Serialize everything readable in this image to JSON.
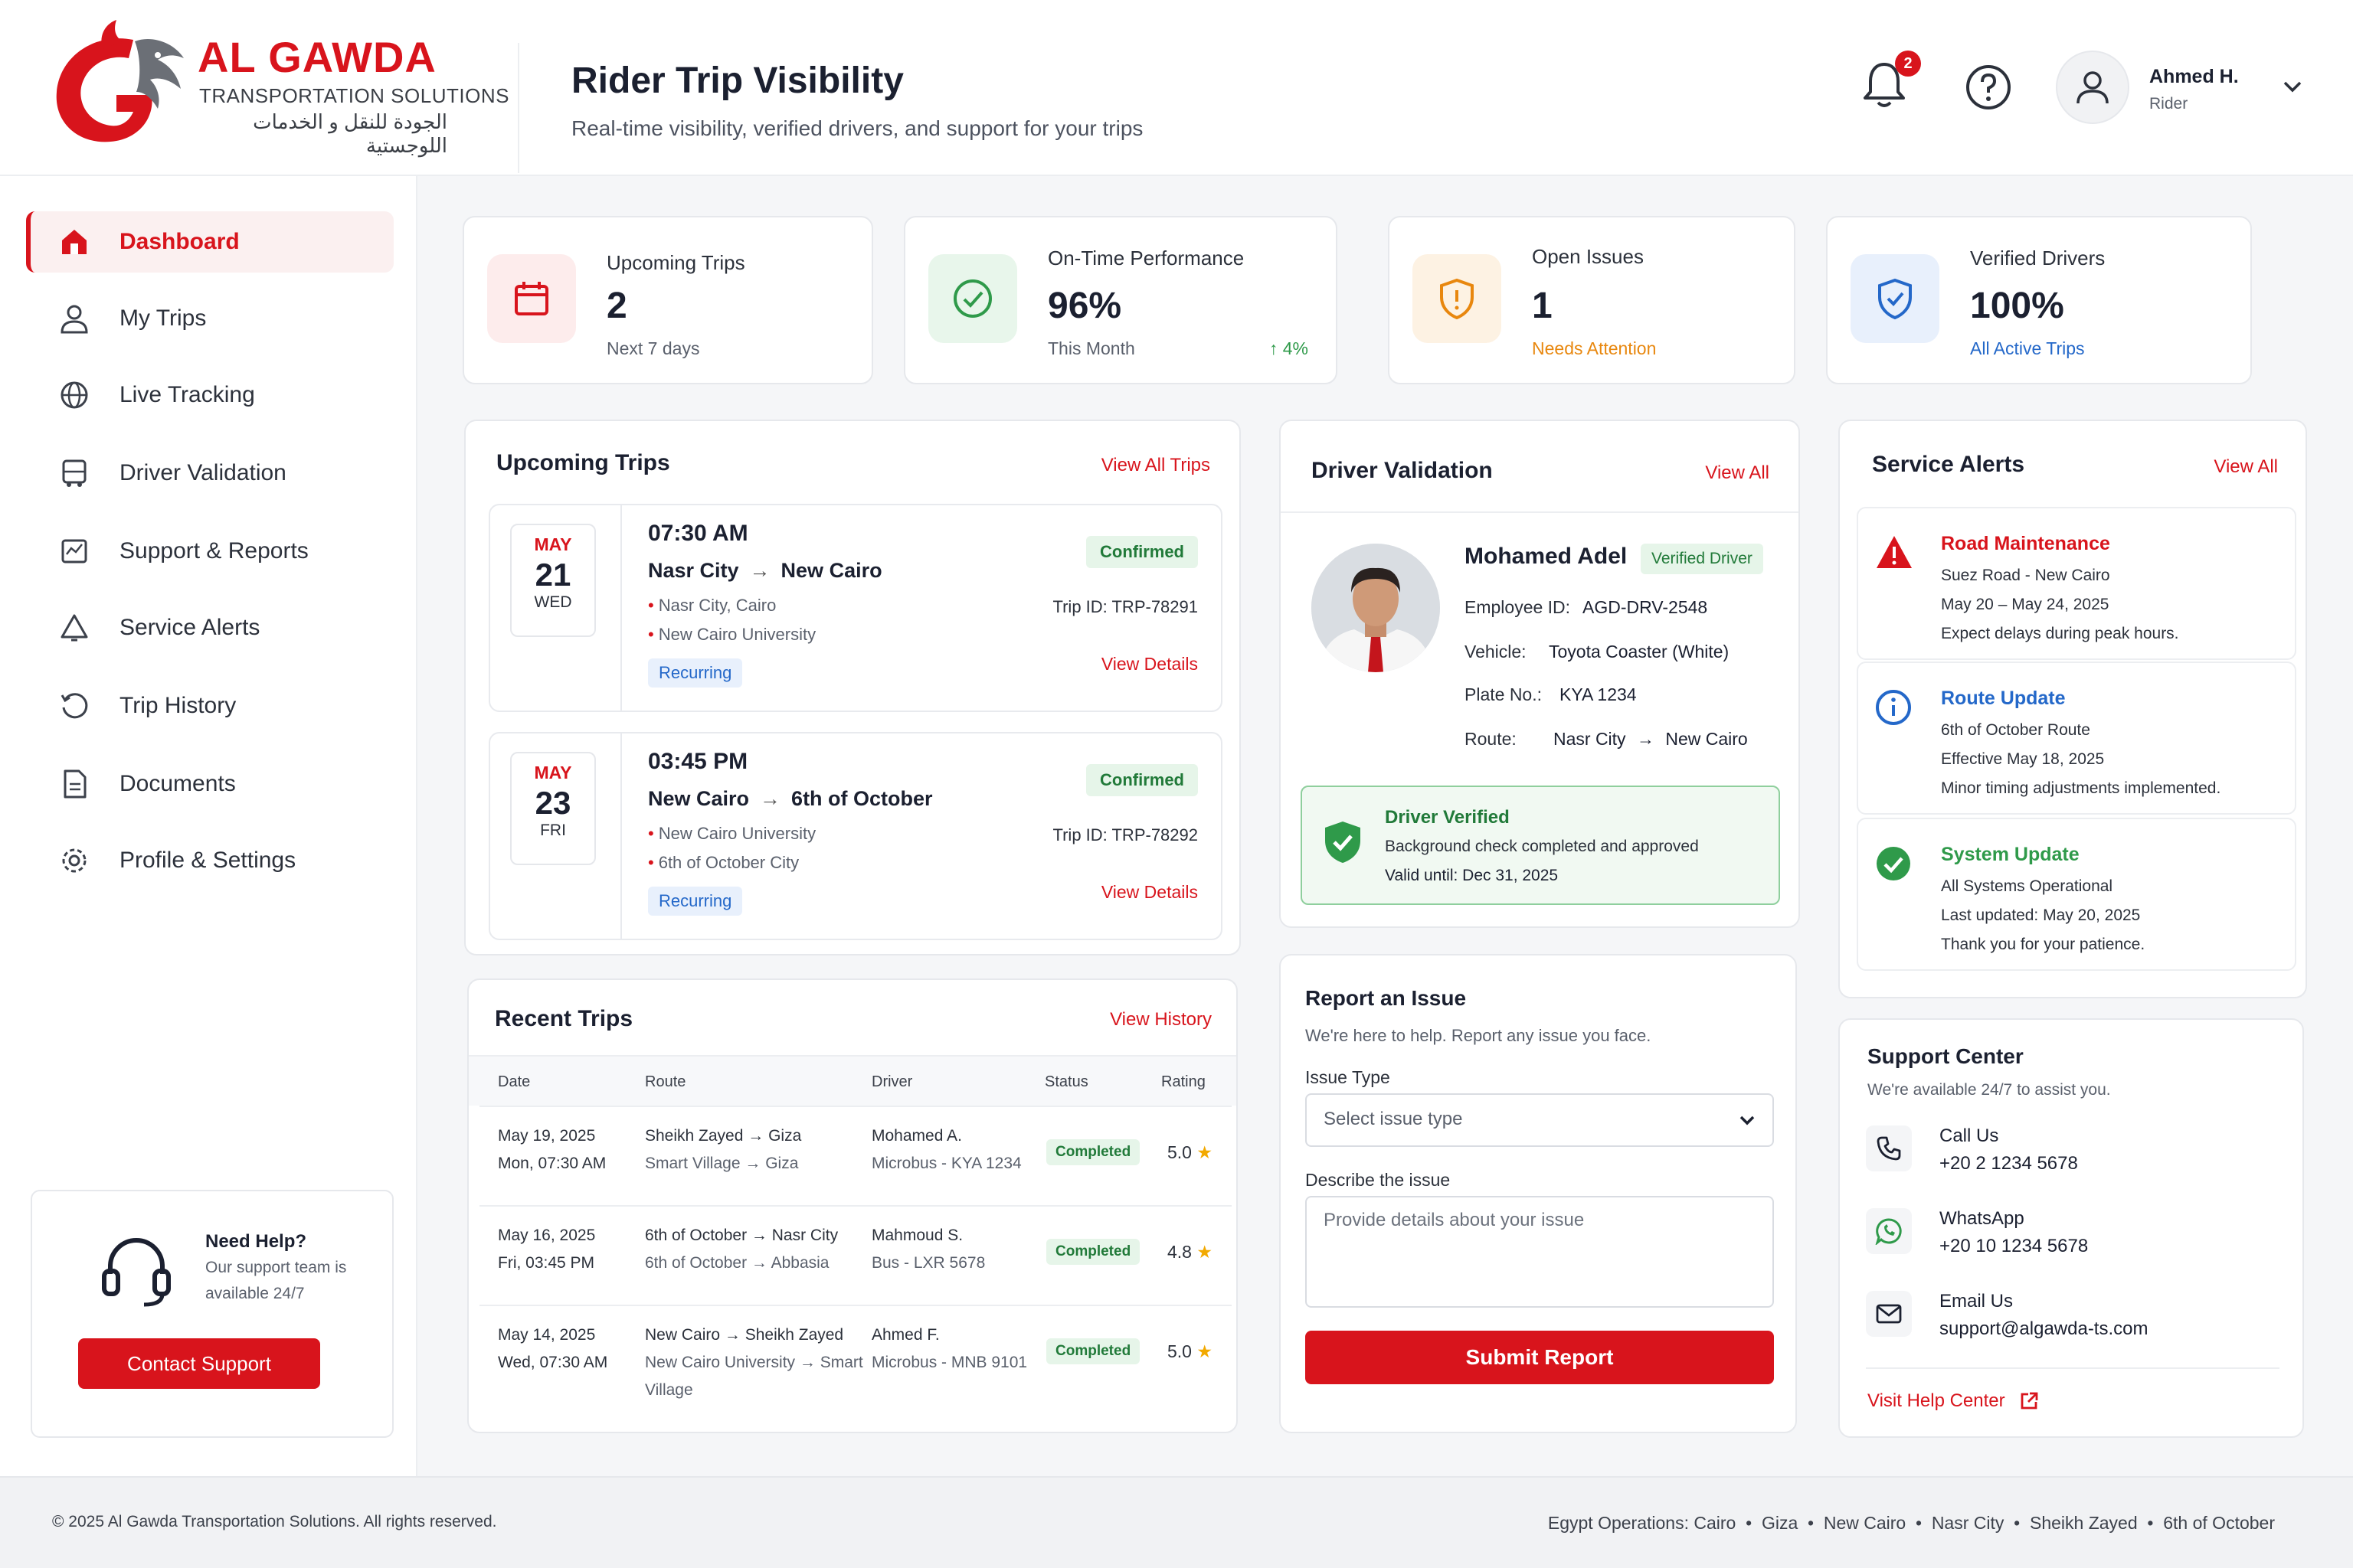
{
  "brand": {
    "name": "AL GAWDA",
    "subtitle": "TRANSPORTATION SOLUTIONS",
    "arabic": "الجودة للنقل و الخدمات اللوجستية"
  },
  "header": {
    "title": "Rider Trip Visibility",
    "subtitle": "Real-time visibility, verified drivers, and support for your trips",
    "notification_count": "2",
    "user_name": "Ahmed H.",
    "user_role": "Rider"
  },
  "sidebar": {
    "items": [
      {
        "label": "Dashboard",
        "icon": "home-icon"
      },
      {
        "label": "My Trips",
        "icon": "user-icon"
      },
      {
        "label": "Live Tracking",
        "icon": "globe-icon"
      },
      {
        "label": "Driver Validation",
        "icon": "bus-icon"
      },
      {
        "label": "Support & Reports",
        "icon": "report-icon"
      },
      {
        "label": "Service Alerts",
        "icon": "bell-icon"
      },
      {
        "label": "Trip History",
        "icon": "history-icon"
      },
      {
        "label": "Documents",
        "icon": "document-icon"
      },
      {
        "label": "Profile & Settings",
        "icon": "gear-icon"
      }
    ],
    "help": {
      "title": "Need Help?",
      "text_line1": "Our support team is",
      "text_line2": "available 24/7",
      "button": "Contact Support"
    }
  },
  "stats": [
    {
      "label": "Upcoming Trips",
      "value": "2",
      "note": "Next 7 days",
      "color": "#d8141c"
    },
    {
      "label": "On-Time Performance",
      "value": "96%",
      "note": "This Month",
      "trend": "↑ 4%",
      "color": "#2f9a4a"
    },
    {
      "label": "Open Issues",
      "value": "1",
      "note": "Needs Attention",
      "color": "#e8870e"
    },
    {
      "label": "Verified Drivers",
      "value": "100%",
      "note": "All Active Trips",
      "color": "#2468c9"
    }
  ],
  "upcoming": {
    "title": "Upcoming Trips",
    "link": "View All Trips",
    "trips": [
      {
        "month": "MAY",
        "day": "21",
        "weekday": "WED",
        "time": "07:30 AM",
        "from": "Nasr City",
        "to": "New Cairo",
        "stop1": "Nasr City, Cairo",
        "stop2": "New Cairo University",
        "tag": "Recurring",
        "status": "Confirmed",
        "trip_id": "Trip ID: TRP-78291",
        "details": "View Details"
      },
      {
        "month": "MAY",
        "day": "23",
        "weekday": "FRI",
        "time": "03:45 PM",
        "from": "New Cairo",
        "to": "6th of October",
        "stop1": "New Cairo University",
        "stop2": "6th of October City",
        "tag": "Recurring",
        "status": "Confirmed",
        "trip_id": "Trip ID: TRP-78292",
        "details": "View Details"
      }
    ]
  },
  "recent": {
    "title": "Recent Trips",
    "link": "View History",
    "columns": [
      "Date",
      "Route",
      "Driver",
      "Status",
      "Rating"
    ],
    "rows": [
      {
        "date": "May 19, 2025",
        "time": "Mon, 07:30 AM",
        "route1_from": "Sheikh Zayed",
        "route1_to": "Giza",
        "route2_from": "Smart Village",
        "route2_to": "Giza",
        "driver": "Mohamed A.",
        "vehicle": "Microbus - KYA 1234",
        "status": "Completed",
        "rating": "5.0"
      },
      {
        "date": "May 16, 2025",
        "time": "Fri, 03:45 PM",
        "route1_from": "6th of October",
        "route1_to": "Nasr City",
        "route2_from": "6th of October",
        "route2_to": "Abbasia",
        "driver": "Mahmoud S.",
        "vehicle": "Bus - LXR 5678",
        "status": "Completed",
        "rating": "4.8"
      },
      {
        "date": "May 14, 2025",
        "time": "Wed, 07:30 AM",
        "route1_from": "New Cairo",
        "route1_to": "Sheikh Zayed",
        "route2_from": "New Cairo University",
        "route2_to": "Smart Village",
        "driver": "Ahmed F.",
        "vehicle": "Microbus - MNB 9101",
        "status": "Completed",
        "rating": "5.0"
      }
    ]
  },
  "driver": {
    "title": "Driver Validation",
    "link": "View All",
    "name": "Mohamed Adel",
    "badge": "Verified Driver",
    "employee_label": "Employee ID:",
    "employee_id": "AGD-DRV-2548",
    "vehicle_label": "Vehicle:",
    "vehicle": "Toyota Coaster (White)",
    "plate_label": "Plate No.:",
    "plate": "KYA 1234",
    "route_label": "Route:",
    "route_from": "Nasr City",
    "route_to": "New Cairo",
    "verified_title": "Driver Verified",
    "verified_text": "Background check completed and approved",
    "verified_valid": "Valid until: Dec 31, 2025"
  },
  "report": {
    "title": "Report an Issue",
    "subtitle": "We're here to help. Report any issue you face.",
    "type_label": "Issue Type",
    "type_placeholder": "Select issue type",
    "desc_label": "Describe the issue",
    "desc_placeholder": "Provide details about your issue",
    "submit": "Submit Report"
  },
  "alerts": {
    "title": "Service Alerts",
    "link": "View All",
    "items": [
      {
        "title": "Road Maintenance",
        "line1": "Suez Road - New Cairo",
        "line2": "May 20 – May 24, 2025",
        "line3": "Expect delays during peak hours.",
        "color": "#d8141c"
      },
      {
        "title": "Route Update",
        "line1": "6th of October Route",
        "line2": "Effective May 18, 2025",
        "line3": "Minor timing adjustments implemented.",
        "color": "#2468c9"
      },
      {
        "title": "System Update",
        "line1": "All Systems Operational",
        "line2": "Last updated: May 20, 2025",
        "line3": "Thank you for your patience.",
        "color": "#2f9a4a"
      }
    ]
  },
  "support": {
    "title": "Support Center",
    "subtitle": "We're available 24/7 to assist you.",
    "call_label": "Call Us",
    "call_value": "+20 2 1234 5678",
    "wa_label": "WhatsApp",
    "wa_value": "+20 10 1234 5678",
    "email_label": "Email Us",
    "email_value": "support@algawda-ts.com",
    "help_link": "Visit Help Center"
  },
  "footer": {
    "copyright": "© 2025 Al Gawda Transportation Solutions. All rights reserved.",
    "operations": "Egypt Operations: Cairo  •  Giza  •  New Cairo  •  Nasr City  •  Sheikh Zayed  •  6th of October"
  }
}
